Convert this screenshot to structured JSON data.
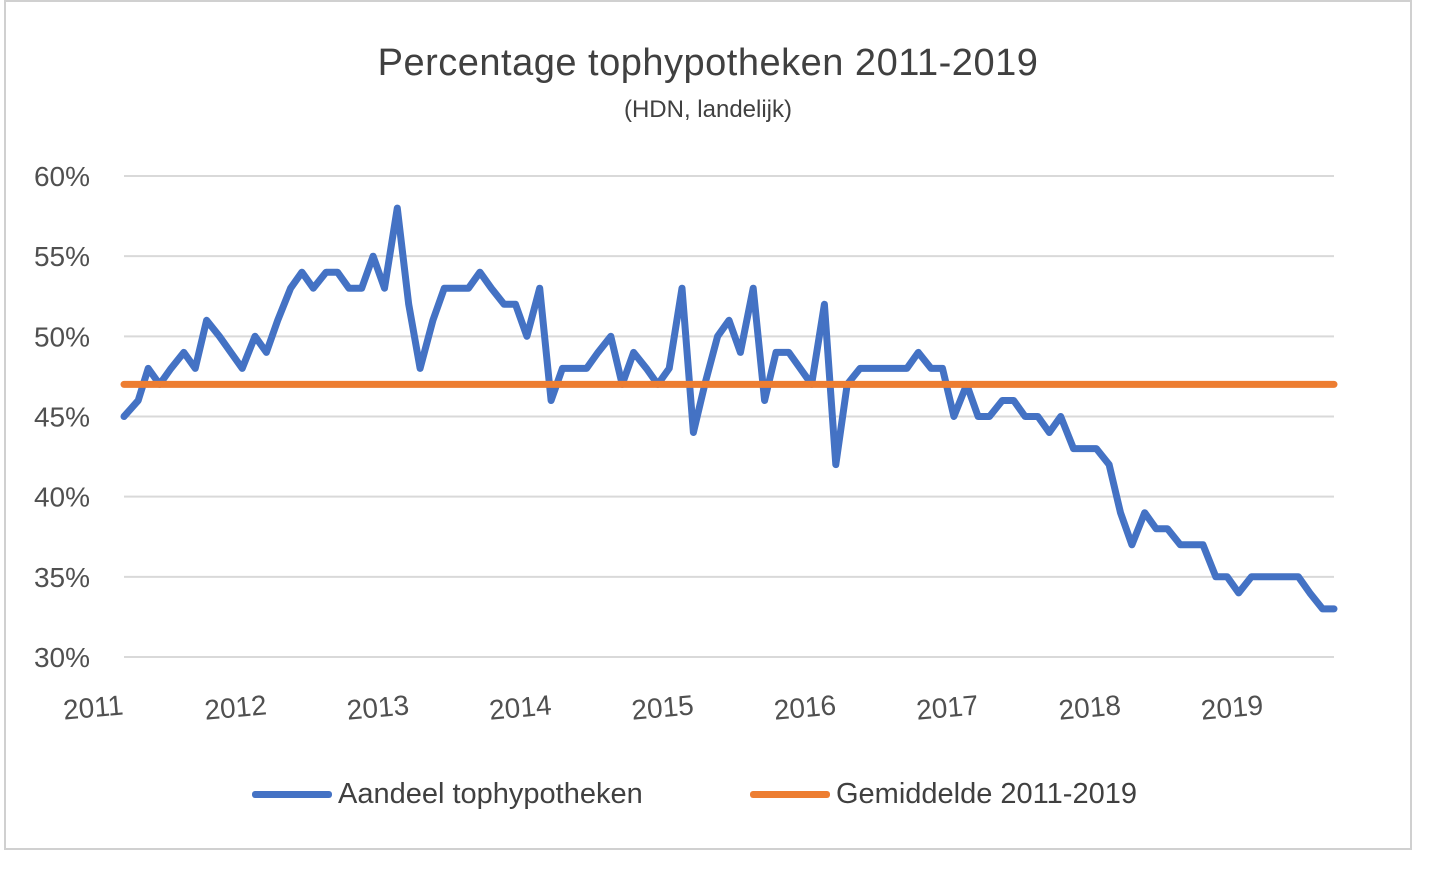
{
  "chart_data": {
    "type": "line",
    "title": "Percentage tophypotheken  2011-2019",
    "subtitle": "(HDN, landelijk)",
    "y_ticks": [
      "30%",
      "35%",
      "40%",
      "45%",
      "50%",
      "55%",
      "60%"
    ],
    "x_ticks": [
      "2011",
      "2012",
      "2013",
      "2014",
      "2015",
      "2016",
      "2017",
      "2018",
      "2019"
    ],
    "ylim": [
      30,
      60
    ],
    "xlim": [
      2011,
      2019.5
    ],
    "grid": "horizontal",
    "legend_position": "bottom",
    "series": [
      {
        "name": "Aandeel tophypotheken",
        "color": "#4472C4",
        "points": [
          [
            2011.0,
            45
          ],
          [
            2011.1,
            46
          ],
          [
            2011.17,
            48
          ],
          [
            2011.25,
            47
          ],
          [
            2011.33,
            48
          ],
          [
            2011.42,
            49
          ],
          [
            2011.5,
            48
          ],
          [
            2011.58,
            51
          ],
          [
            2011.67,
            50
          ],
          [
            2011.75,
            49
          ],
          [
            2011.83,
            48
          ],
          [
            2011.92,
            50
          ],
          [
            2012.0,
            49
          ],
          [
            2012.08,
            51
          ],
          [
            2012.17,
            53
          ],
          [
            2012.25,
            54
          ],
          [
            2012.33,
            53
          ],
          [
            2012.42,
            54
          ],
          [
            2012.5,
            54
          ],
          [
            2012.58,
            53
          ],
          [
            2012.67,
            53
          ],
          [
            2012.75,
            55
          ],
          [
            2012.83,
            53
          ],
          [
            2012.92,
            58
          ],
          [
            2013.0,
            52
          ],
          [
            2013.08,
            48
          ],
          [
            2013.17,
            51
          ],
          [
            2013.25,
            53
          ],
          [
            2013.33,
            53
          ],
          [
            2013.42,
            53
          ],
          [
            2013.5,
            54
          ],
          [
            2013.58,
            53
          ],
          [
            2013.67,
            52
          ],
          [
            2013.75,
            52
          ],
          [
            2013.83,
            50
          ],
          [
            2013.92,
            53
          ],
          [
            2014.0,
            46
          ],
          [
            2014.08,
            48
          ],
          [
            2014.17,
            48
          ],
          [
            2014.25,
            48
          ],
          [
            2014.33,
            49
          ],
          [
            2014.42,
            50
          ],
          [
            2014.5,
            47
          ],
          [
            2014.58,
            49
          ],
          [
            2014.67,
            48
          ],
          [
            2014.75,
            47
          ],
          [
            2014.83,
            48
          ],
          [
            2014.92,
            53
          ],
          [
            2015.0,
            44
          ],
          [
            2015.08,
            47
          ],
          [
            2015.17,
            50
          ],
          [
            2015.25,
            51
          ],
          [
            2015.33,
            49
          ],
          [
            2015.42,
            53
          ],
          [
            2015.5,
            46
          ],
          [
            2015.58,
            49
          ],
          [
            2015.67,
            49
          ],
          [
            2015.75,
            48
          ],
          [
            2015.83,
            47
          ],
          [
            2015.92,
            52
          ],
          [
            2016.0,
            42
          ],
          [
            2016.08,
            47
          ],
          [
            2016.17,
            48
          ],
          [
            2016.25,
            48
          ],
          [
            2016.33,
            48
          ],
          [
            2016.42,
            48
          ],
          [
            2016.5,
            48
          ],
          [
            2016.58,
            49
          ],
          [
            2016.67,
            48
          ],
          [
            2016.75,
            48
          ],
          [
            2016.83,
            45
          ],
          [
            2016.92,
            47
          ],
          [
            2017.0,
            45
          ],
          [
            2017.08,
            45
          ],
          [
            2017.17,
            46
          ],
          [
            2017.25,
            46
          ],
          [
            2017.33,
            45
          ],
          [
            2017.42,
            45
          ],
          [
            2017.5,
            44
          ],
          [
            2017.58,
            45
          ],
          [
            2017.67,
            43
          ],
          [
            2017.75,
            43
          ],
          [
            2017.83,
            43
          ],
          [
            2017.92,
            42
          ],
          [
            2018.0,
            39
          ],
          [
            2018.08,
            37
          ],
          [
            2018.17,
            39
          ],
          [
            2018.25,
            38
          ],
          [
            2018.33,
            38
          ],
          [
            2018.42,
            37
          ],
          [
            2018.5,
            37
          ],
          [
            2018.58,
            37
          ],
          [
            2018.67,
            35
          ],
          [
            2018.75,
            35
          ],
          [
            2018.83,
            34
          ],
          [
            2018.92,
            35
          ],
          [
            2019.0,
            35
          ],
          [
            2019.08,
            35
          ],
          [
            2019.17,
            35
          ],
          [
            2019.25,
            35
          ],
          [
            2019.33,
            34
          ],
          [
            2019.42,
            33
          ],
          [
            2019.5,
            33
          ]
        ]
      },
      {
        "name": "Gemiddelde 2011-2019",
        "color": "#ED7D31",
        "points": [
          [
            2011.0,
            47
          ],
          [
            2019.5,
            47
          ]
        ]
      }
    ]
  }
}
